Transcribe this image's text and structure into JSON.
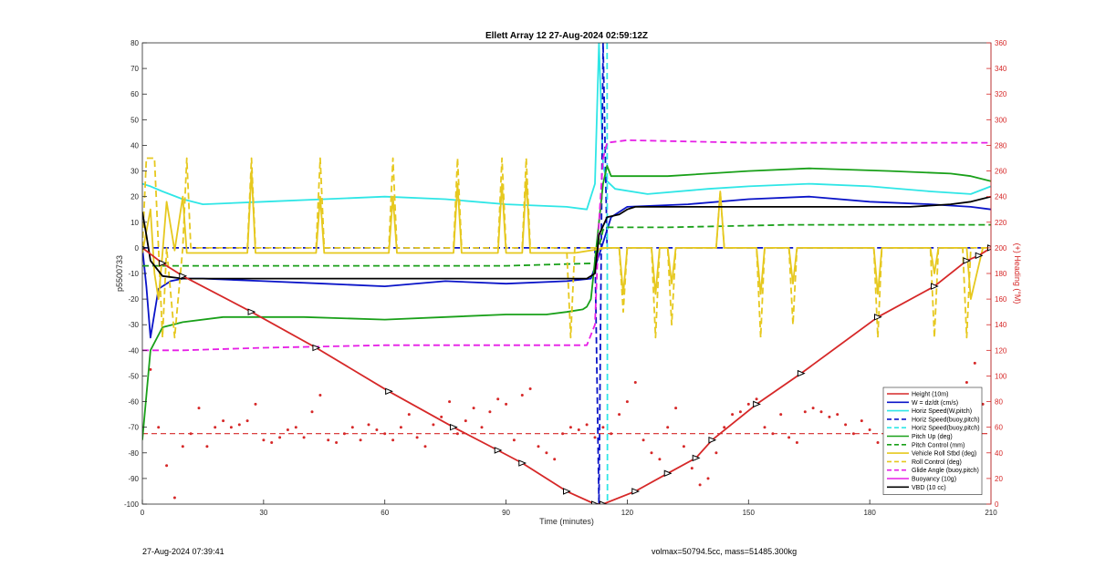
{
  "footer": {
    "left": "27-Aug-2024 07:39:41",
    "right": "volmax=50794.5cc, mass=51485.300kg"
  },
  "chart_data": {
    "type": "line",
    "title": "Ellett Array 12 27-Aug-2024 02:59:12Z",
    "xlabel": "Time (minutes)",
    "ylabel": "p5500733",
    "y2label": "(+) Heading (°M)",
    "xlim": [
      0,
      210
    ],
    "ylim": [
      -100,
      80
    ],
    "y2lim": [
      0,
      360
    ],
    "xticks": [
      0,
      30,
      60,
      90,
      120,
      150,
      180,
      210
    ],
    "yticks": [
      80,
      70,
      60,
      50,
      40,
      30,
      20,
      10,
      0,
      -10,
      -20,
      -30,
      -40,
      -50,
      -60,
      -70,
      -80,
      -90,
      -100
    ],
    "y2ticks": [
      360,
      340,
      320,
      300,
      280,
      260,
      240,
      220,
      200,
      180,
      160,
      140,
      120,
      100,
      80,
      60,
      40,
      20,
      0
    ],
    "grid": false,
    "legend_position": "bottom-right",
    "series": [
      {
        "name": "Height (10m)",
        "color": "#d62828",
        "style": "solid",
        "markers": true,
        "x": [
          0,
          5,
          10,
          27,
          43,
          61,
          77,
          88,
          94,
          105,
          112,
          114,
          122,
          130,
          137,
          141,
          152,
          163,
          182,
          196,
          204,
          207,
          210
        ],
        "y": [
          0,
          -6,
          -11,
          -25,
          -39,
          -56,
          -70,
          -79,
          -84,
          -95,
          -100,
          -100,
          -95,
          -88,
          -82,
          -75,
          -61,
          -49,
          -27,
          -15,
          -5,
          -3,
          0
        ]
      },
      {
        "name": "W = dz/dt (cm/s)",
        "color": "#0a14c8",
        "style": "solid",
        "x": [
          0,
          1,
          2,
          4,
          7,
          10,
          15,
          30,
          45,
          60,
          75,
          90,
          105,
          111,
          113,
          116,
          120,
          135,
          150,
          165,
          180,
          195,
          205,
          210
        ],
        "y": [
          0,
          -15,
          -35,
          -16,
          -13,
          -12,
          -12,
          -13,
          -14,
          -15,
          -13,
          -14,
          -13,
          -12,
          -3,
          12,
          16,
          17,
          19,
          20,
          18,
          17,
          16,
          15
        ]
      },
      {
        "name": "Horiz Speed(W,pitch)",
        "color": "#2fe6e6",
        "style": "solid",
        "x": [
          0,
          2,
          5,
          10,
          15,
          30,
          45,
          60,
          75,
          90,
          105,
          110,
          112,
          113,
          114,
          115,
          117,
          125,
          140,
          150,
          165,
          180,
          195,
          205,
          210
        ],
        "y": [
          25,
          24,
          22,
          19,
          17,
          18,
          19,
          20,
          19,
          17,
          16,
          15,
          25,
          80,
          32,
          26,
          23,
          21,
          23,
          24,
          25,
          24,
          22,
          21,
          24
        ]
      },
      {
        "name": "Horiz Speed(buoy,pitch)",
        "color": "#0a14c8",
        "style": "dashed",
        "x": [
          0,
          112,
          113,
          114,
          115,
          210
        ],
        "y": [
          0,
          0,
          -100,
          80,
          0,
          0
        ]
      },
      {
        "name": "Horiz Speed(buoy,pitch)",
        "color": "#2fe6e6",
        "style": "dashed",
        "x": [
          115,
          115.1
        ],
        "y": [
          80,
          -100
        ]
      },
      {
        "name": "Pitch Up (deg)",
        "color": "#19a019",
        "style": "solid",
        "x": [
          0,
          2,
          5,
          10,
          20,
          40,
          60,
          75,
          90,
          100,
          105,
          109,
          110,
          111,
          112,
          113,
          114,
          115,
          116,
          130,
          150,
          165,
          185,
          200,
          205,
          210
        ],
        "y": [
          -75,
          -40,
          -31,
          -29,
          -27,
          -27,
          -28,
          -27,
          -26,
          -26,
          -25,
          -24,
          -23,
          -20,
          -5,
          10,
          25,
          32,
          28,
          28,
          30,
          31,
          30,
          29,
          28,
          26
        ]
      },
      {
        "name": "Pitch Control (mm)",
        "color": "#19a019",
        "style": "dashed",
        "x": [
          0,
          10,
          30,
          60,
          90,
          112,
          114,
          115,
          130,
          160,
          180,
          200,
          210
        ],
        "y": [
          -7,
          -7,
          -7,
          -7,
          -7,
          -6,
          7,
          8,
          8,
          9,
          9,
          9,
          9
        ]
      },
      {
        "name": "Vehicle Roll Stbd (deg)",
        "color": "#e6c81e",
        "style": "solid",
        "x": [
          0,
          2,
          3,
          4,
          5,
          6,
          8,
          10,
          11,
          12,
          26,
          27,
          28,
          43,
          44,
          45,
          61,
          62,
          63,
          77,
          78,
          79,
          88,
          89,
          90,
          94,
          95,
          96,
          105,
          106,
          107,
          115,
          118,
          119,
          120,
          121,
          122,
          126,
          127,
          128,
          130,
          131,
          132,
          142,
          143,
          144,
          152,
          153,
          154,
          160,
          161,
          162,
          181,
          182,
          183,
          195,
          196,
          197,
          203,
          204,
          205,
          208,
          209,
          210
        ],
        "y": [
          -2,
          15,
          -10,
          -20,
          -2,
          18,
          -1,
          20,
          -2,
          -2,
          -2,
          30,
          -2,
          -2,
          20,
          -2,
          -2,
          20,
          -2,
          -2,
          25,
          -2,
          -2,
          25,
          -2,
          -2,
          27,
          -2,
          -2,
          -2,
          -2,
          0,
          0,
          -18,
          0,
          0,
          0,
          0,
          -18,
          0,
          0,
          -14,
          0,
          0,
          22,
          0,
          0,
          -18,
          0,
          0,
          -14,
          0,
          0,
          -18,
          0,
          0,
          -10,
          0,
          0,
          0,
          -20,
          0,
          0,
          0
        ]
      },
      {
        "name": "Roll Control (deg)",
        "color": "#e6c81e",
        "style": "dashed",
        "x": [
          0,
          1,
          3,
          5,
          6,
          8,
          10,
          11,
          12,
          26,
          27,
          28,
          43,
          44,
          45,
          61,
          62,
          63,
          77,
          78,
          79,
          88,
          89,
          90,
          94,
          95,
          96,
          105,
          106,
          107,
          115,
          118,
          119,
          120,
          126,
          127,
          128,
          130,
          131,
          132,
          142,
          143,
          144,
          152,
          153,
          154,
          160,
          161,
          162,
          181,
          182,
          183,
          195,
          196,
          197,
          203,
          204,
          205,
          210
        ],
        "y": [
          0,
          35,
          35,
          -35,
          0,
          -35,
          0,
          35,
          0,
          0,
          35,
          0,
          0,
          35,
          0,
          0,
          35,
          0,
          0,
          35,
          0,
          0,
          35,
          0,
          0,
          35,
          0,
          0,
          -35,
          0,
          0,
          0,
          -25,
          0,
          0,
          -35,
          0,
          0,
          -30,
          0,
          0,
          22,
          0,
          0,
          -35,
          0,
          0,
          -30,
          0,
          0,
          -35,
          0,
          0,
          -35,
          0,
          0,
          -35,
          0,
          0
        ]
      },
      {
        "name": "Glide Angle (buoy,pitch)",
        "color": "#e61ee6",
        "style": "dashed",
        "x": [
          0,
          5,
          10,
          30,
          60,
          90,
          105,
          110,
          112,
          113,
          114,
          115,
          120,
          150,
          180,
          210
        ],
        "y": [
          -40,
          -40,
          -40,
          -39,
          -38,
          -38,
          -38,
          -38,
          -30,
          10,
          35,
          41,
          42,
          41,
          41,
          41
        ]
      },
      {
        "name": "Buoyancy (10g)",
        "color": "#e61ee6",
        "style": "solid",
        "x": [],
        "y": []
      },
      {
        "name": "VBD (10 cc)",
        "color": "#000000",
        "style": "solid",
        "x": [
          0,
          1,
          2,
          5,
          10,
          30,
          60,
          90,
          110,
          112,
          113,
          115,
          118,
          120,
          122,
          150,
          180,
          190,
          200,
          205,
          210
        ],
        "y": [
          14,
          5,
          -5,
          -11,
          -12,
          -12,
          -12,
          -12,
          -12,
          -10,
          5,
          12,
          13,
          15,
          16,
          16,
          16,
          16,
          17,
          18,
          20
        ]
      }
    ],
    "heading_series": {
      "name": "(+) Heading (°M)",
      "color": "#d62828",
      "style": "dotted",
      "mean": 55,
      "x": [
        2,
        4,
        6,
        8,
        10,
        12,
        14,
        16,
        18,
        20,
        22,
        24,
        26,
        28,
        30,
        32,
        34,
        36,
        38,
        40,
        42,
        44,
        46,
        48,
        50,
        52,
        54,
        56,
        58,
        60,
        62,
        64,
        66,
        68,
        70,
        72,
        74,
        76,
        78,
        80,
        82,
        84,
        86,
        88,
        90,
        92,
        94,
        96,
        98,
        100,
        102,
        104,
        106,
        108,
        110,
        112,
        114,
        116,
        118,
        120,
        122,
        124,
        126,
        128,
        130,
        132,
        134,
        136,
        138,
        140,
        142,
        144,
        146,
        148,
        150,
        152,
        154,
        156,
        158,
        160,
        162,
        164,
        166,
        168,
        170,
        172,
        174,
        176,
        178,
        180,
        182,
        184,
        186,
        188,
        190,
        192,
        194,
        196,
        198,
        200,
        202,
        204,
        206,
        208
      ],
      "y": [
        105,
        60,
        30,
        5,
        45,
        55,
        75,
        45,
        60,
        65,
        60,
        62,
        65,
        78,
        50,
        48,
        52,
        58,
        60,
        52,
        72,
        85,
        50,
        48,
        55,
        60,
        50,
        62,
        58,
        55,
        50,
        60,
        70,
        52,
        45,
        62,
        68,
        80,
        55,
        65,
        75,
        60,
        72,
        82,
        78,
        50,
        85,
        90,
        45,
        40,
        35,
        55,
        60,
        58,
        62,
        52,
        60,
        55,
        70,
        80,
        95,
        50,
        40,
        35,
        60,
        75,
        45,
        28,
        15,
        20,
        40,
        60,
        70,
        72,
        78,
        82,
        60,
        55,
        70,
        52,
        48,
        72,
        75,
        72,
        68,
        70,
        62,
        55,
        65,
        58,
        48,
        70,
        68,
        72,
        70,
        62,
        48,
        55,
        66,
        80,
        60,
        95,
        110,
        78
      ]
    }
  }
}
